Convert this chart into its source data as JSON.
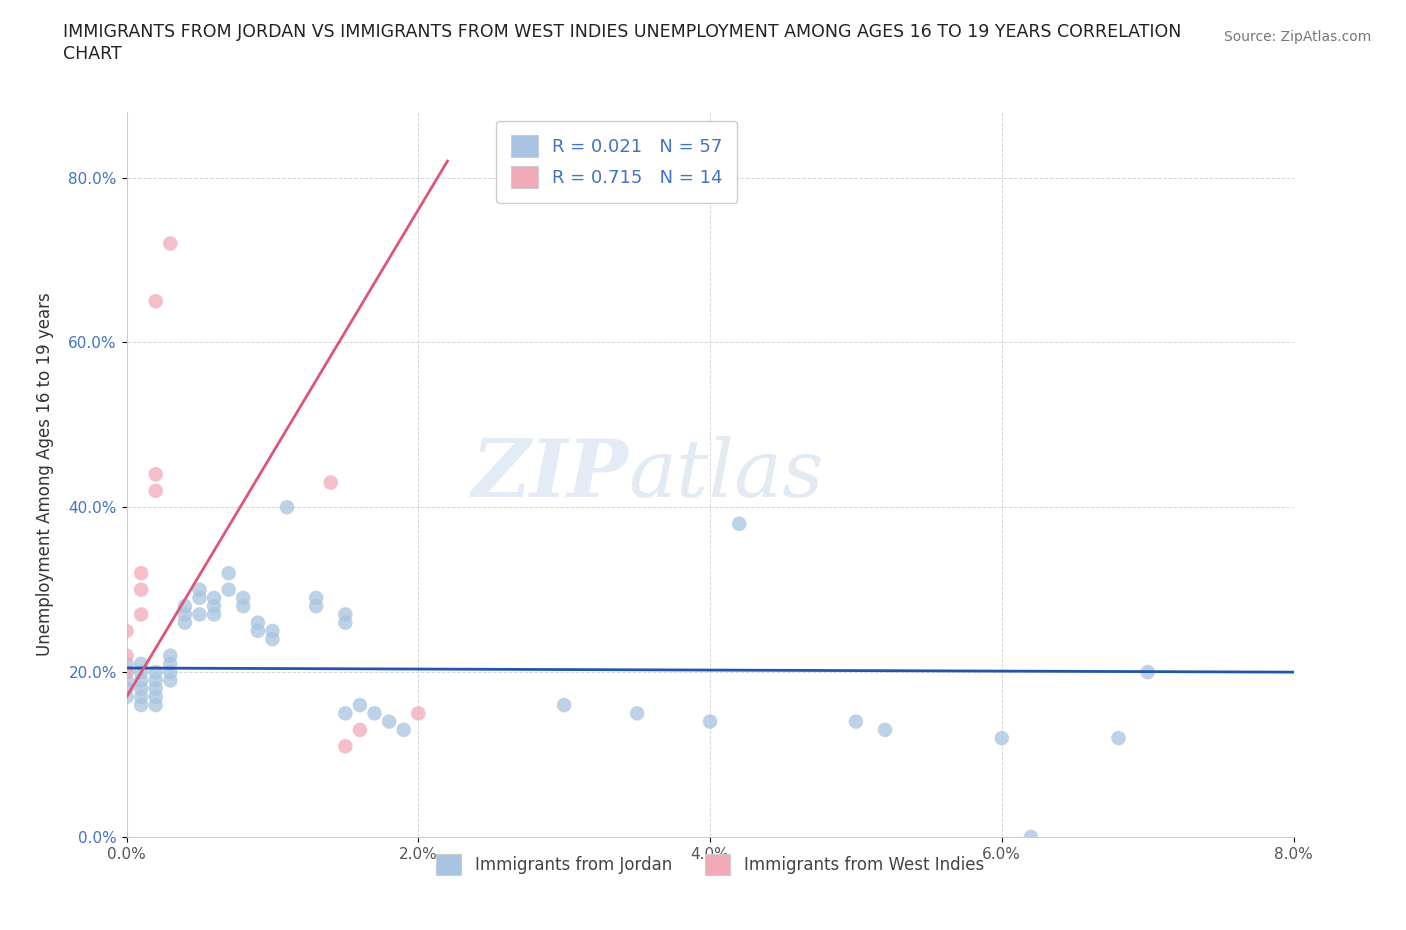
{
  "title_line1": "IMMIGRANTS FROM JORDAN VS IMMIGRANTS FROM WEST INDIES UNEMPLOYMENT AMONG AGES 16 TO 19 YEARS CORRELATION",
  "title_line2": "CHART",
  "source": "Source: ZipAtlas.com",
  "ylabel_label": "Unemployment Among Ages 16 to 19 years",
  "xlim": [
    0.0,
    0.08
  ],
  "ylim": [
    0.0,
    0.88
  ],
  "xticks": [
    0.0,
    0.02,
    0.04,
    0.06,
    0.08
  ],
  "xtick_labels": [
    "0.0%",
    "2.0%",
    "4.0%",
    "6.0%",
    "8.0%"
  ],
  "ytick_labels": [
    "0.0%",
    "20.0%",
    "40.0%",
    "60.0%",
    "80.0%"
  ],
  "yticks": [
    0.0,
    0.2,
    0.4,
    0.6,
    0.8
  ],
  "jordan_color": "#a8c4e0",
  "west_indies_color": "#f2aab8",
  "jordan_line_color": "#2255aa",
  "west_indies_line_color": "#dd5577",
  "legend_r1": "R = 0.021   N = 57",
  "legend_r2": "R = 0.715   N = 14",
  "watermark_zip": "ZIP",
  "watermark_atlas": "atlas",
  "jordan_x": [
    0.0,
    0.0,
    0.0,
    0.0,
    0.0,
    0.001,
    0.001,
    0.001,
    0.001,
    0.001,
    0.001,
    0.002,
    0.002,
    0.002,
    0.002,
    0.002,
    0.003,
    0.003,
    0.003,
    0.003,
    0.004,
    0.004,
    0.004,
    0.005,
    0.005,
    0.005,
    0.006,
    0.006,
    0.006,
    0.007,
    0.007,
    0.008,
    0.008,
    0.009,
    0.009,
    0.01,
    0.01,
    0.011,
    0.013,
    0.013,
    0.015,
    0.015,
    0.015,
    0.016,
    0.017,
    0.018,
    0.019,
    0.03,
    0.035,
    0.04,
    0.042,
    0.05,
    0.052,
    0.06,
    0.062,
    0.068,
    0.07
  ],
  "jordan_y": [
    0.2,
    0.19,
    0.21,
    0.18,
    0.17,
    0.2,
    0.19,
    0.21,
    0.18,
    0.17,
    0.16,
    0.2,
    0.19,
    0.18,
    0.17,
    0.16,
    0.22,
    0.21,
    0.2,
    0.19,
    0.28,
    0.27,
    0.26,
    0.3,
    0.29,
    0.27,
    0.29,
    0.28,
    0.27,
    0.32,
    0.3,
    0.29,
    0.28,
    0.26,
    0.25,
    0.25,
    0.24,
    0.4,
    0.29,
    0.28,
    0.27,
    0.26,
    0.15,
    0.16,
    0.15,
    0.14,
    0.13,
    0.16,
    0.15,
    0.14,
    0.38,
    0.14,
    0.13,
    0.12,
    0.0,
    0.12,
    0.2
  ],
  "west_indies_x": [
    0.0,
    0.0,
    0.0,
    0.001,
    0.001,
    0.001,
    0.002,
    0.002,
    0.002,
    0.003,
    0.014,
    0.015,
    0.016,
    0.02
  ],
  "west_indies_y": [
    0.2,
    0.22,
    0.25,
    0.27,
    0.3,
    0.32,
    0.42,
    0.44,
    0.65,
    0.72,
    0.43,
    0.11,
    0.13,
    0.15
  ],
  "jordan_line_x": [
    0.0,
    0.08
  ],
  "jordan_line_y": [
    0.205,
    0.2
  ],
  "west_indies_line_x": [
    0.0,
    0.022
  ],
  "west_indies_line_y": [
    0.17,
    0.82
  ]
}
